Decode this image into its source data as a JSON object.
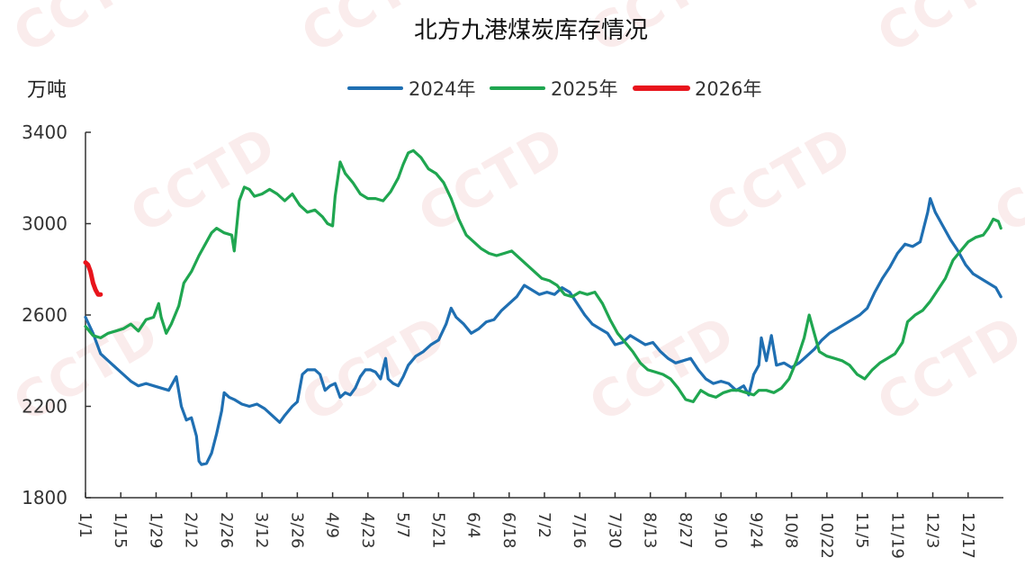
{
  "watermark": "CCTD",
  "chart_data": {
    "type": "line",
    "title": "北方九港煤炭库存情况",
    "unit": "万吨",
    "ylim": [
      1800,
      3400
    ],
    "yticks": [
      1800,
      2200,
      2600,
      3000,
      3400
    ],
    "xlim": [
      1,
      365
    ],
    "xticks": [
      {
        "day": 1,
        "label": "1/1"
      },
      {
        "day": 15,
        "label": "1/15"
      },
      {
        "day": 29,
        "label": "1/29"
      },
      {
        "day": 43,
        "label": "2/12"
      },
      {
        "day": 57,
        "label": "2/26"
      },
      {
        "day": 71,
        "label": "3/12"
      },
      {
        "day": 85,
        "label": "3/26"
      },
      {
        "day": 99,
        "label": "4/9"
      },
      {
        "day": 113,
        "label": "4/23"
      },
      {
        "day": 127,
        "label": "5/7"
      },
      {
        "day": 141,
        "label": "5/21"
      },
      {
        "day": 155,
        "label": "6/4"
      },
      {
        "day": 169,
        "label": "6/18"
      },
      {
        "day": 183,
        "label": "7/2"
      },
      {
        "day": 197,
        "label": "7/16"
      },
      {
        "day": 211,
        "label": "7/30"
      },
      {
        "day": 225,
        "label": "8/13"
      },
      {
        "day": 239,
        "label": "8/27"
      },
      {
        "day": 253,
        "label": "9/10"
      },
      {
        "day": 267,
        "label": "9/24"
      },
      {
        "day": 281,
        "label": "10/8"
      },
      {
        "day": 295,
        "label": "10/22"
      },
      {
        "day": 309,
        "label": "11/5"
      },
      {
        "day": 323,
        "label": "11/19"
      },
      {
        "day": 337,
        "label": "12/3"
      },
      {
        "day": 351,
        "label": "12/17"
      }
    ],
    "legend_position": "top",
    "grid": false,
    "series": [
      {
        "name": "2024年",
        "color": "#1f6fb2",
        "points": [
          [
            1,
            2590
          ],
          [
            4,
            2520
          ],
          [
            7,
            2430
          ],
          [
            10,
            2400
          ],
          [
            13,
            2370
          ],
          [
            16,
            2340
          ],
          [
            19,
            2310
          ],
          [
            22,
            2290
          ],
          [
            25,
            2300
          ],
          [
            28,
            2290
          ],
          [
            31,
            2280
          ],
          [
            34,
            2270
          ],
          [
            37,
            2330
          ],
          [
            39,
            2200
          ],
          [
            41,
            2140
          ],
          [
            43,
            2150
          ],
          [
            45,
            2070
          ],
          [
            46,
            1960
          ],
          [
            47,
            1945
          ],
          [
            49,
            1950
          ],
          [
            51,
            1995
          ],
          [
            53,
            2080
          ],
          [
            55,
            2180
          ],
          [
            56,
            2260
          ],
          [
            58,
            2240
          ],
          [
            60,
            2230
          ],
          [
            63,
            2210
          ],
          [
            66,
            2200
          ],
          [
            69,
            2210
          ],
          [
            72,
            2190
          ],
          [
            74,
            2170
          ],
          [
            76,
            2150
          ],
          [
            78,
            2130
          ],
          [
            80,
            2160
          ],
          [
            83,
            2200
          ],
          [
            85,
            2220
          ],
          [
            87,
            2340
          ],
          [
            89,
            2360
          ],
          [
            92,
            2360
          ],
          [
            94,
            2340
          ],
          [
            96,
            2270
          ],
          [
            98,
            2290
          ],
          [
            100,
            2300
          ],
          [
            102,
            2240
          ],
          [
            104,
            2260
          ],
          [
            106,
            2250
          ],
          [
            108,
            2280
          ],
          [
            110,
            2330
          ],
          [
            112,
            2360
          ],
          [
            114,
            2360
          ],
          [
            116,
            2350
          ],
          [
            118,
            2320
          ],
          [
            120,
            2410
          ],
          [
            121,
            2320
          ],
          [
            123,
            2300
          ],
          [
            125,
            2290
          ],
          [
            127,
            2330
          ],
          [
            129,
            2380
          ],
          [
            132,
            2420
          ],
          [
            135,
            2440
          ],
          [
            138,
            2470
          ],
          [
            141,
            2490
          ],
          [
            144,
            2560
          ],
          [
            146,
            2630
          ],
          [
            148,
            2590
          ],
          [
            151,
            2560
          ],
          [
            154,
            2520
          ],
          [
            157,
            2540
          ],
          [
            160,
            2570
          ],
          [
            163,
            2580
          ],
          [
            166,
            2620
          ],
          [
            169,
            2650
          ],
          [
            172,
            2680
          ],
          [
            175,
            2730
          ],
          [
            178,
            2710
          ],
          [
            181,
            2690
          ],
          [
            184,
            2700
          ],
          [
            187,
            2690
          ],
          [
            190,
            2720
          ],
          [
            193,
            2700
          ],
          [
            196,
            2650
          ],
          [
            199,
            2600
          ],
          [
            202,
            2560
          ],
          [
            205,
            2540
          ],
          [
            208,
            2520
          ],
          [
            211,
            2470
          ],
          [
            214,
            2480
          ],
          [
            217,
            2510
          ],
          [
            220,
            2490
          ],
          [
            223,
            2470
          ],
          [
            226,
            2480
          ],
          [
            229,
            2440
          ],
          [
            232,
            2410
          ],
          [
            235,
            2390
          ],
          [
            238,
            2400
          ],
          [
            241,
            2410
          ],
          [
            244,
            2360
          ],
          [
            247,
            2320
          ],
          [
            250,
            2300
          ],
          [
            253,
            2310
          ],
          [
            256,
            2300
          ],
          [
            259,
            2270
          ],
          [
            262,
            2290
          ],
          [
            264,
            2250
          ],
          [
            266,
            2340
          ],
          [
            268,
            2380
          ],
          [
            269,
            2500
          ],
          [
            271,
            2400
          ],
          [
            273,
            2510
          ],
          [
            275,
            2380
          ],
          [
            278,
            2390
          ],
          [
            281,
            2370
          ],
          [
            284,
            2390
          ],
          [
            287,
            2420
          ],
          [
            290,
            2450
          ],
          [
            293,
            2490
          ],
          [
            296,
            2520
          ],
          [
            299,
            2540
          ],
          [
            302,
            2560
          ],
          [
            305,
            2580
          ],
          [
            308,
            2600
          ],
          [
            311,
            2630
          ],
          [
            314,
            2700
          ],
          [
            317,
            2760
          ],
          [
            320,
            2810
          ],
          [
            323,
            2870
          ],
          [
            326,
            2910
          ],
          [
            329,
            2900
          ],
          [
            332,
            2920
          ],
          [
            335,
            3050
          ],
          [
            336,
            3110
          ],
          [
            338,
            3050
          ],
          [
            341,
            2990
          ],
          [
            344,
            2930
          ],
          [
            347,
            2880
          ],
          [
            350,
            2820
          ],
          [
            353,
            2780
          ],
          [
            356,
            2760
          ],
          [
            359,
            2740
          ],
          [
            362,
            2720
          ],
          [
            364,
            2680
          ]
        ]
      },
      {
        "name": "2025年",
        "color": "#1fa650",
        "points": [
          [
            1,
            2550
          ],
          [
            4,
            2510
          ],
          [
            7,
            2500
          ],
          [
            10,
            2520
          ],
          [
            13,
            2530
          ],
          [
            16,
            2540
          ],
          [
            19,
            2560
          ],
          [
            22,
            2530
          ],
          [
            25,
            2580
          ],
          [
            28,
            2590
          ],
          [
            30,
            2650
          ],
          [
            31,
            2590
          ],
          [
            33,
            2520
          ],
          [
            35,
            2560
          ],
          [
            38,
            2640
          ],
          [
            40,
            2740
          ],
          [
            43,
            2790
          ],
          [
            46,
            2860
          ],
          [
            49,
            2920
          ],
          [
            51,
            2960
          ],
          [
            53,
            2980
          ],
          [
            56,
            2960
          ],
          [
            59,
            2950
          ],
          [
            60,
            2880
          ],
          [
            62,
            3100
          ],
          [
            64,
            3160
          ],
          [
            66,
            3150
          ],
          [
            68,
            3120
          ],
          [
            71,
            3130
          ],
          [
            74,
            3150
          ],
          [
            77,
            3130
          ],
          [
            80,
            3100
          ],
          [
            83,
            3130
          ],
          [
            86,
            3080
          ],
          [
            89,
            3050
          ],
          [
            92,
            3060
          ],
          [
            95,
            3030
          ],
          [
            97,
            3000
          ],
          [
            99,
            2990
          ],
          [
            100,
            3120
          ],
          [
            102,
            3270
          ],
          [
            104,
            3220
          ],
          [
            107,
            3180
          ],
          [
            110,
            3130
          ],
          [
            113,
            3110
          ],
          [
            116,
            3110
          ],
          [
            119,
            3100
          ],
          [
            122,
            3140
          ],
          [
            125,
            3200
          ],
          [
            127,
            3260
          ],
          [
            129,
            3310
          ],
          [
            131,
            3320
          ],
          [
            134,
            3290
          ],
          [
            137,
            3240
          ],
          [
            140,
            3220
          ],
          [
            143,
            3180
          ],
          [
            146,
            3110
          ],
          [
            149,
            3020
          ],
          [
            152,
            2950
          ],
          [
            155,
            2920
          ],
          [
            158,
            2890
          ],
          [
            161,
            2870
          ],
          [
            164,
            2860
          ],
          [
            167,
            2870
          ],
          [
            170,
            2880
          ],
          [
            173,
            2850
          ],
          [
            176,
            2820
          ],
          [
            179,
            2790
          ],
          [
            182,
            2760
          ],
          [
            185,
            2750
          ],
          [
            188,
            2730
          ],
          [
            191,
            2690
          ],
          [
            194,
            2680
          ],
          [
            197,
            2700
          ],
          [
            200,
            2690
          ],
          [
            203,
            2700
          ],
          [
            206,
            2650
          ],
          [
            209,
            2580
          ],
          [
            212,
            2520
          ],
          [
            215,
            2480
          ],
          [
            218,
            2440
          ],
          [
            221,
            2390
          ],
          [
            224,
            2360
          ],
          [
            227,
            2350
          ],
          [
            230,
            2340
          ],
          [
            233,
            2320
          ],
          [
            236,
            2280
          ],
          [
            239,
            2230
          ],
          [
            242,
            2220
          ],
          [
            245,
            2270
          ],
          [
            248,
            2250
          ],
          [
            251,
            2240
          ],
          [
            254,
            2260
          ],
          [
            257,
            2270
          ],
          [
            260,
            2270
          ],
          [
            263,
            2260
          ],
          [
            266,
            2250
          ],
          [
            268,
            2270
          ],
          [
            271,
            2270
          ],
          [
            274,
            2260
          ],
          [
            277,
            2280
          ],
          [
            280,
            2320
          ],
          [
            283,
            2400
          ],
          [
            286,
            2500
          ],
          [
            288,
            2600
          ],
          [
            290,
            2520
          ],
          [
            292,
            2440
          ],
          [
            295,
            2420
          ],
          [
            298,
            2410
          ],
          [
            301,
            2400
          ],
          [
            304,
            2380
          ],
          [
            307,
            2340
          ],
          [
            310,
            2320
          ],
          [
            313,
            2360
          ],
          [
            316,
            2390
          ],
          [
            319,
            2410
          ],
          [
            322,
            2430
          ],
          [
            325,
            2480
          ],
          [
            327,
            2570
          ],
          [
            330,
            2600
          ],
          [
            333,
            2620
          ],
          [
            336,
            2660
          ],
          [
            339,
            2710
          ],
          [
            342,
            2760
          ],
          [
            345,
            2840
          ],
          [
            348,
            2880
          ],
          [
            351,
            2920
          ],
          [
            354,
            2940
          ],
          [
            357,
            2950
          ],
          [
            359,
            2980
          ],
          [
            361,
            3020
          ],
          [
            363,
            3010
          ],
          [
            364,
            2980
          ]
        ]
      },
      {
        "name": "2026年",
        "color": "#e8141c",
        "points": [
          [
            1,
            2830
          ],
          [
            2,
            2820
          ],
          [
            3,
            2790
          ],
          [
            4,
            2740
          ],
          [
            5,
            2710
          ],
          [
            6,
            2690
          ],
          [
            7,
            2690
          ]
        ]
      }
    ]
  }
}
